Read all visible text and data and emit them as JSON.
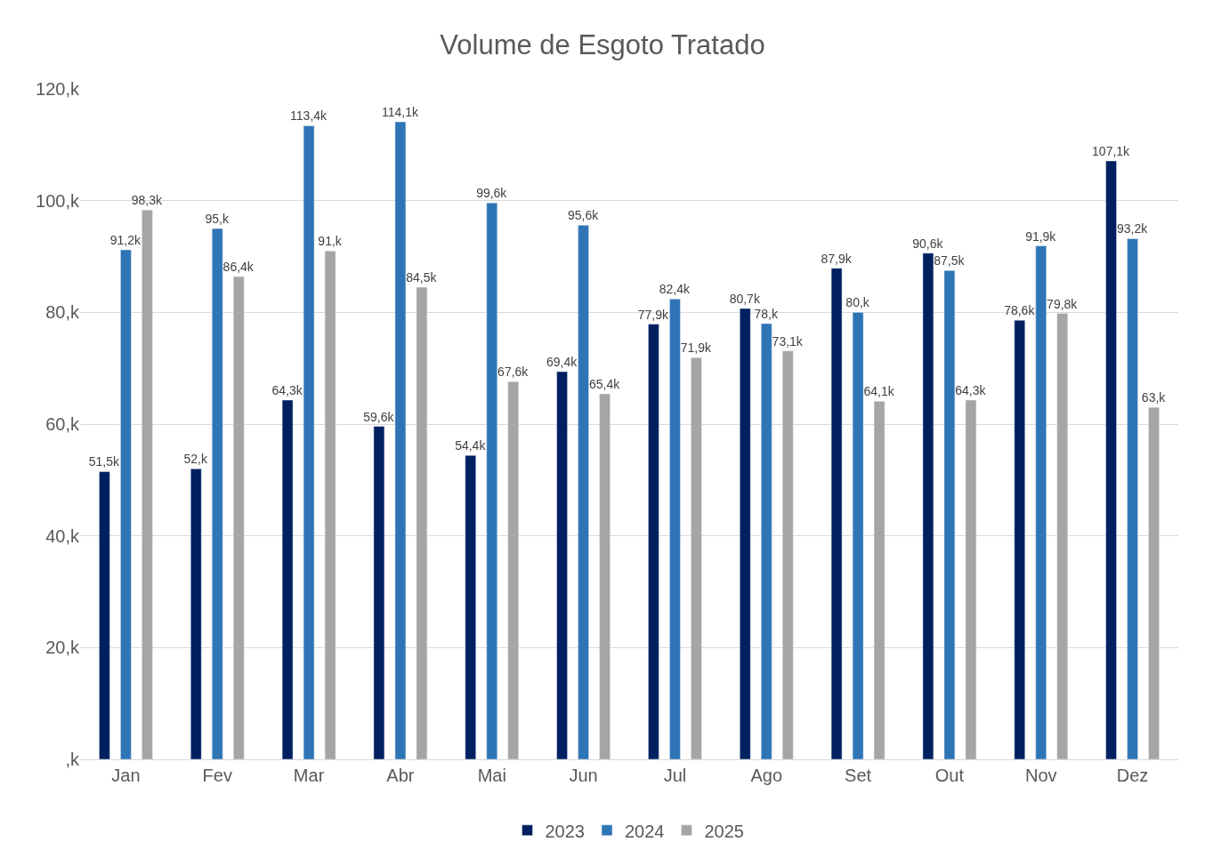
{
  "chart_data": {
    "type": "bar",
    "title": "Volume de Esgoto Tratado",
    "categories": [
      "Jan",
      "Fev",
      "Mar",
      "Abr",
      "Mai",
      "Jun",
      "Jul",
      "Ago",
      "Set",
      "Out",
      "Nov",
      "Dez"
    ],
    "series": [
      {
        "name": "2023",
        "color": "#002060",
        "values": [
          51.5,
          52,
          64.3,
          59.6,
          54.4,
          69.4,
          77.9,
          80.7,
          87.9,
          90.6,
          78.6,
          107.1
        ],
        "value_labels": [
          "51,5k",
          "52,k",
          "64,3k",
          "59,6k",
          "54,4k",
          "69,4k",
          "77,9k",
          "80,7k",
          "87,9k",
          "90,6k",
          "78,6k",
          "107,1k"
        ]
      },
      {
        "name": "2024",
        "color": "#2e75b6",
        "values": [
          91.2,
          95,
          113.4,
          114.1,
          99.6,
          95.6,
          82.4,
          78,
          80,
          87.5,
          91.9,
          93.2
        ],
        "value_labels": [
          "91,2k",
          "95,k",
          "113,4k",
          "114,1k",
          "99,6k",
          "95,6k",
          "82,4k",
          "78,k",
          "80,k",
          "87,5k",
          "91,9k",
          "93,2k"
        ]
      },
      {
        "name": "2025",
        "color": "#a5a5a5",
        "values": [
          98.3,
          86.4,
          91,
          84.5,
          67.6,
          65.4,
          71.9,
          73.1,
          64.1,
          64.3,
          79.8,
          63
        ],
        "value_labels": [
          "98,3k",
          "86,4k",
          "91,k",
          "84,5k",
          "67,6k",
          "65,4k",
          "71,9k",
          "73,1k",
          "64,1k",
          "64,3k",
          "79,8k",
          "63,k"
        ]
      }
    ],
    "ylim": [
      0,
      120
    ],
    "yticks": [
      {
        "value": 0,
        "label": ",k"
      },
      {
        "value": 20,
        "label": "20,k"
      },
      {
        "value": 40,
        "label": "40,k"
      },
      {
        "value": 60,
        "label": "60,k"
      },
      {
        "value": 80,
        "label": "80,k"
      },
      {
        "value": 100,
        "label": "100,k"
      },
      {
        "value": 120,
        "label": "120,k"
      }
    ],
    "grid": "y",
    "legend": "bottom"
  }
}
